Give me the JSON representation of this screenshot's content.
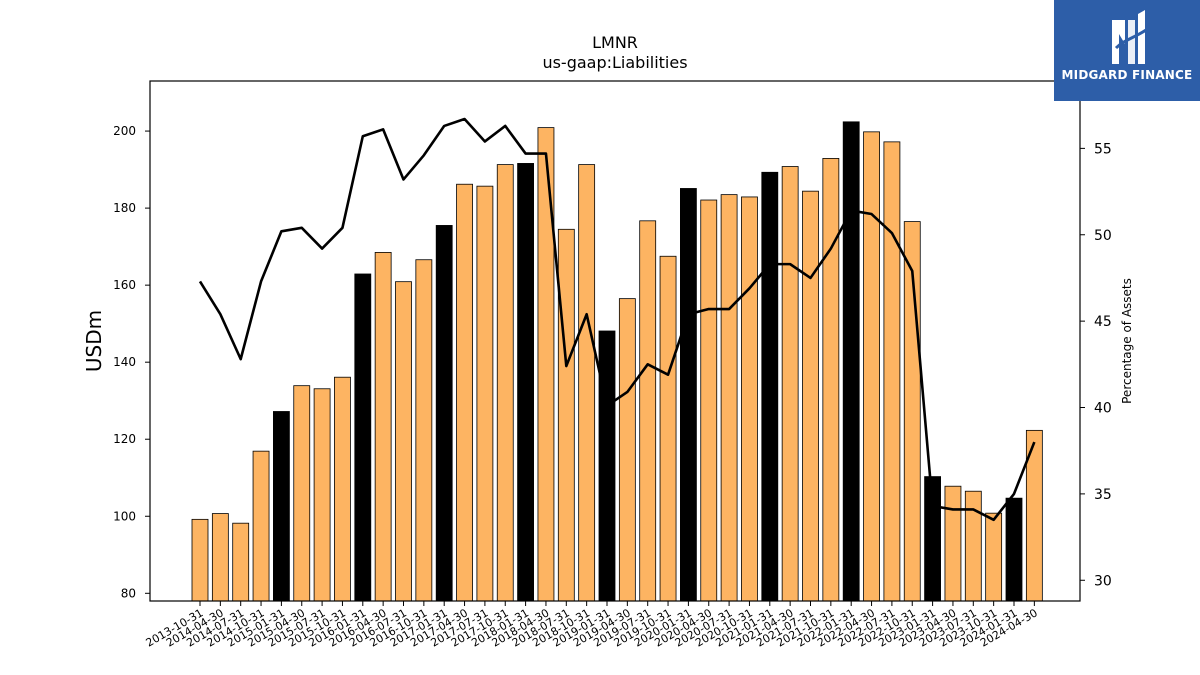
{
  "chart_data": {
    "type": "bar",
    "title": "LMNR",
    "subtitle": "us-gaap:Liabilities",
    "ylabel": "USDm",
    "y2label": "Percentage of Assets",
    "ylim": [
      78,
      213
    ],
    "y2lim": [
      28.8,
      58.9
    ],
    "yticks": [
      80,
      100,
      120,
      140,
      160,
      180,
      200
    ],
    "y2ticks": [
      30,
      35,
      40,
      45,
      50,
      55
    ],
    "categories": [
      "2013-10-31",
      "2014-04-30",
      "2014-07-31",
      "2014-10-31",
      "2015-01-31",
      "2015-04-30",
      "2015-07-31",
      "2015-10-31",
      "2016-01-31",
      "2016-04-30",
      "2016-07-31",
      "2016-10-31",
      "2017-01-31",
      "2017-04-30",
      "2017-07-31",
      "2017-10-31",
      "2018-01-31",
      "2018-04-30",
      "2018-07-31",
      "2018-10-31",
      "2019-01-31",
      "2019-04-30",
      "2019-07-31",
      "2019-10-31",
      "2020-01-31",
      "2020-04-30",
      "2020-07-31",
      "2020-10-31",
      "2021-01-31",
      "2021-04-30",
      "2021-07-31",
      "2021-10-31",
      "2022-01-31",
      "2022-04-30",
      "2022-07-31",
      "2022-10-31",
      "2023-01-31",
      "2023-04-30",
      "2023-07-31",
      "2023-10-31",
      "2024-01-31",
      "2024-04-30"
    ],
    "series": [
      {
        "type": "bar",
        "axis": "left",
        "values": [
          99.2,
          100.7,
          98.2,
          116.9,
          127.2,
          133.9,
          133.1,
          136.1,
          162.9,
          168.5,
          160.9,
          166.6,
          175.5,
          186.2,
          185.7,
          191.3,
          191.6,
          200.9,
          174.5,
          191.3,
          148.1,
          156.5,
          176.7,
          167.5,
          185.1,
          182.1,
          183.5,
          182.9,
          189.3,
          190.8,
          184.4,
          192.9,
          202.4,
          199.8,
          197.2,
          176.5,
          110.3,
          107.8,
          106.5,
          100.8,
          104.7,
          122.3
        ],
        "colors": [
          "#fdb462",
          "#fdb462",
          "#fdb462",
          "#fdb462",
          "#000000",
          "#fdb462",
          "#fdb462",
          "#fdb462",
          "#000000",
          "#fdb462",
          "#fdb462",
          "#fdb462",
          "#000000",
          "#fdb462",
          "#fdb462",
          "#fdb462",
          "#000000",
          "#fdb462",
          "#fdb462",
          "#fdb462",
          "#000000",
          "#fdb462",
          "#fdb462",
          "#fdb462",
          "#000000",
          "#fdb462",
          "#fdb462",
          "#fdb462",
          "#000000",
          "#fdb462",
          "#fdb462",
          "#fdb462",
          "#000000",
          "#fdb462",
          "#fdb462",
          "#fdb462",
          "#000000",
          "#fdb462",
          "#fdb462",
          "#fdb462",
          "#000000",
          "#fdb462"
        ]
      },
      {
        "type": "line",
        "axis": "right",
        "color": "#000000",
        "values": [
          47.3,
          45.4,
          42.8,
          47.3,
          50.2,
          50.4,
          49.2,
          50.4,
          55.7,
          56.1,
          53.2,
          54.6,
          56.3,
          56.7,
          55.4,
          56.3,
          54.7,
          54.7,
          42.4,
          45.4,
          40.1,
          40.9,
          42.5,
          41.9,
          45.4,
          45.7,
          45.7,
          46.9,
          48.3,
          48.3,
          47.5,
          49.2,
          51.4,
          51.2,
          50.1,
          47.9,
          34.3,
          34.1,
          34.1,
          33.5,
          35.0,
          38.0
        ]
      }
    ],
    "grid": false,
    "legend": "none"
  },
  "logo": {
    "text": "MIDGARD FINANCE"
  }
}
